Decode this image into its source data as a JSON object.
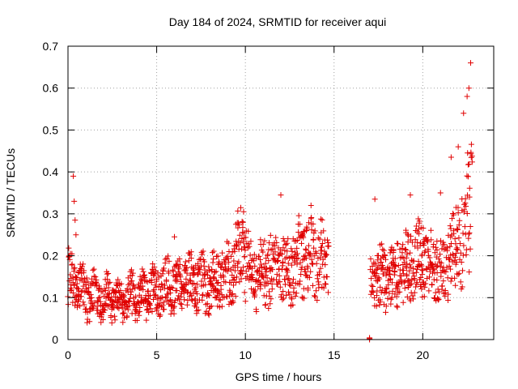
{
  "chart_data": {
    "type": "scatter",
    "title": "Day 184 of 2024, SRMTID for receiver aqui",
    "xlabel": "GPS time / hours",
    "ylabel": "SRMTID / TECUs",
    "xlim": [
      0,
      24
    ],
    "ylim": [
      0,
      0.7
    ],
    "xticks": [
      0,
      5,
      10,
      15,
      20
    ],
    "yticks": [
      0,
      0.1,
      0.2,
      0.3,
      0.4,
      0.5,
      0.6,
      0.7
    ],
    "xtick_labels": [
      "0",
      "5",
      "10",
      "15",
      "20"
    ],
    "ytick_labels": [
      "0",
      "0.1",
      "0.2",
      "0.3",
      "0.4",
      "0.5",
      "0.6",
      "0.7"
    ],
    "grid": true,
    "marker": "+",
    "marker_color": "#e00000",
    "series": [
      {
        "name": "SRMTID",
        "step_hours": 0.02,
        "segments": [
          {
            "x_start": 0.0,
            "x_end": 14.7,
            "trend": [
              [
                0.0,
                0.14
              ],
              [
                0.5,
                0.12
              ],
              [
                1.0,
                0.11
              ],
              [
                2.0,
                0.1
              ],
              [
                3.0,
                0.09
              ],
              [
                4.0,
                0.11
              ],
              [
                5.0,
                0.12
              ],
              [
                6.0,
                0.13
              ],
              [
                7.0,
                0.14
              ],
              [
                8.0,
                0.13
              ],
              [
                9.0,
                0.15
              ],
              [
                9.8,
                0.22
              ],
              [
                10.5,
                0.15
              ],
              [
                11.5,
                0.17
              ],
              [
                12.5,
                0.16
              ],
              [
                13.0,
                0.19
              ],
              [
                14.0,
                0.2
              ],
              [
                14.7,
                0.18
              ]
            ]
          },
          {
            "x_start": 17.0,
            "x_end": 17.0,
            "trend": [
              [
                17.0,
                0.0
              ]
            ]
          },
          {
            "x_start": 17.05,
            "x_end": 22.8,
            "trend": [
              [
                17.05,
                0.14
              ],
              [
                18.0,
                0.15
              ],
              [
                19.0,
                0.17
              ],
              [
                20.0,
                0.2
              ],
              [
                21.0,
                0.16
              ],
              [
                21.7,
                0.2
              ],
              [
                22.3,
                0.25
              ],
              [
                22.8,
                0.35
              ]
            ]
          }
        ],
        "spikes": [
          {
            "x": 0.3,
            "y": 0.39
          },
          {
            "x": 0.35,
            "y": 0.33
          },
          {
            "x": 0.4,
            "y": 0.285
          },
          {
            "x": 0.45,
            "y": 0.25
          },
          {
            "x": 6.0,
            "y": 0.245
          },
          {
            "x": 9.9,
            "y": 0.305
          },
          {
            "x": 12.0,
            "y": 0.345
          },
          {
            "x": 13.7,
            "y": 0.32
          },
          {
            "x": 17.3,
            "y": 0.335
          },
          {
            "x": 19.3,
            "y": 0.345
          },
          {
            "x": 21.0,
            "y": 0.35
          },
          {
            "x": 21.6,
            "y": 0.435
          },
          {
            "x": 22.0,
            "y": 0.46
          },
          {
            "x": 22.3,
            "y": 0.54
          },
          {
            "x": 22.5,
            "y": 0.58
          },
          {
            "x": 22.6,
            "y": 0.6
          },
          {
            "x": 22.7,
            "y": 0.66
          }
        ]
      }
    ]
  }
}
